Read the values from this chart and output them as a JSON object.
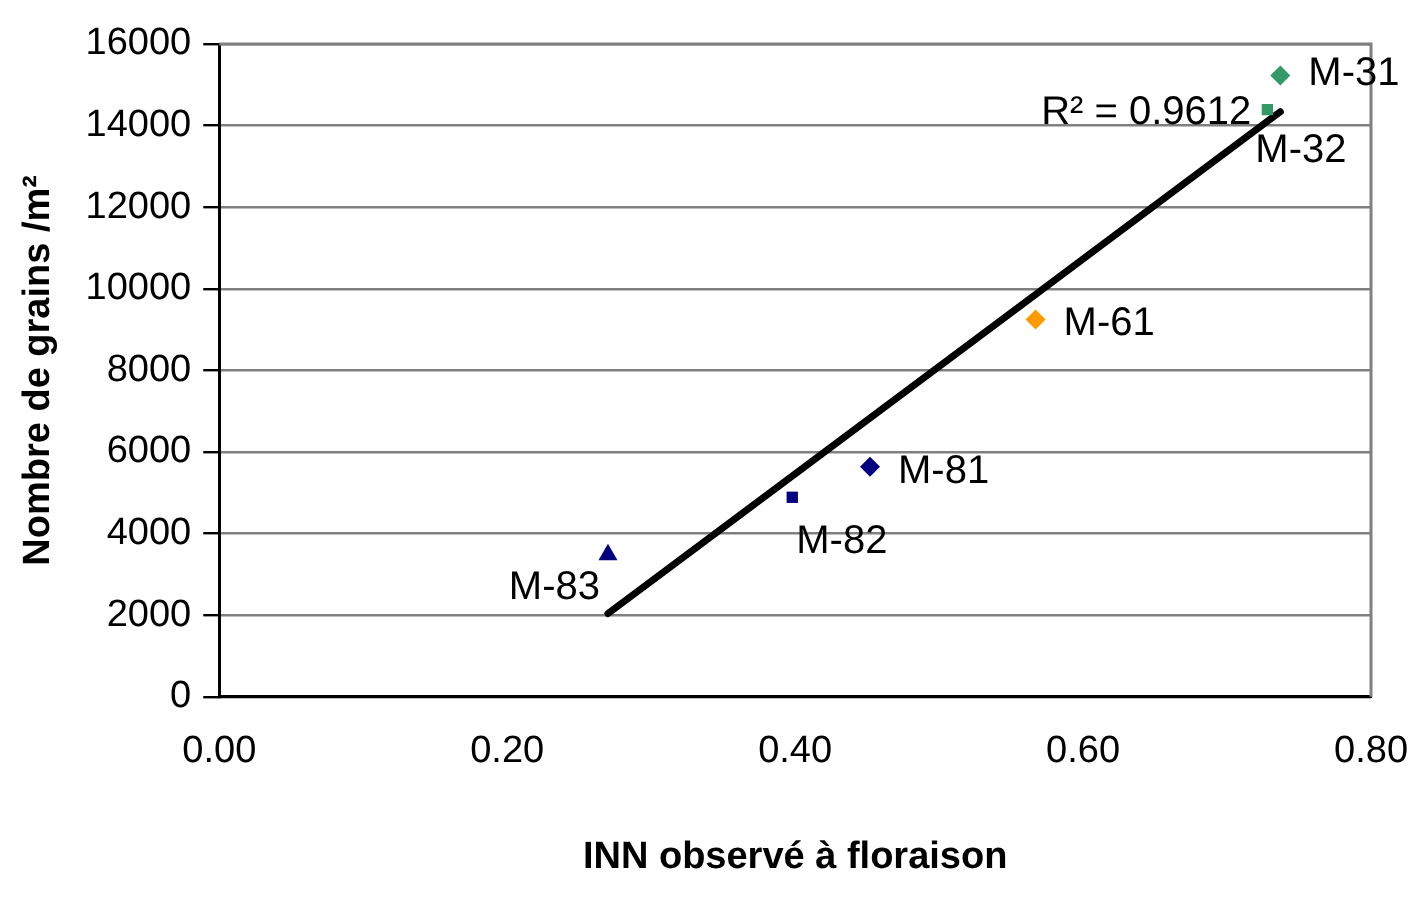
{
  "chart_data": {
    "type": "scatter",
    "xlabel": "INN observé à floraison",
    "ylabel": "Nombre de grains /m²",
    "xlim": [
      0,
      0.8
    ],
    "xticks": [
      {
        "value": 0,
        "label": "0.00"
      },
      {
        "value": 0.2,
        "label": "0.20"
      },
      {
        "value": 0.4,
        "label": "0.40"
      },
      {
        "value": 0.6,
        "label": "0.60"
      },
      {
        "value": 0.8,
        "label": "0.80"
      }
    ],
    "ylim": [
      0,
      16000
    ],
    "yticks": [
      0,
      2000,
      4000,
      6000,
      8000,
      10000,
      12000,
      14000,
      16000
    ],
    "grid": "y",
    "legend": false,
    "series": [
      {
        "name": "M-31",
        "color": "#339966",
        "marker": "diamond",
        "x": [
          0.737
        ],
        "values": [
          15230
        ]
      },
      {
        "name": "M-32",
        "color": "#339966",
        "marker": "square",
        "x": [
          0.728
        ],
        "values": [
          14390
        ]
      },
      {
        "name": "M-61",
        "color": "#ff9900",
        "marker": "diamond",
        "x": [
          0.567
        ],
        "values": [
          9250
        ]
      },
      {
        "name": "M-81",
        "color": "#000080",
        "marker": "diamond",
        "x": [
          0.452
        ],
        "values": [
          5640
        ]
      },
      {
        "name": "M-82",
        "color": "#000080",
        "marker": "square",
        "x": [
          0.398
        ],
        "values": [
          4890
        ]
      },
      {
        "name": "M-83",
        "color": "#000080",
        "marker": "triangle",
        "x": [
          0.27
        ],
        "values": [
          3480
        ]
      },
      {
        "type": "line",
        "color": "#000000",
        "marker": "none",
        "x": [
          0.27,
          0.737
        ],
        "values": [
          2040,
          14340
        ]
      }
    ],
    "annotations": [
      {
        "text": "R² = 0.9612",
        "x": 0.728,
        "y": 14340
      }
    ]
  }
}
